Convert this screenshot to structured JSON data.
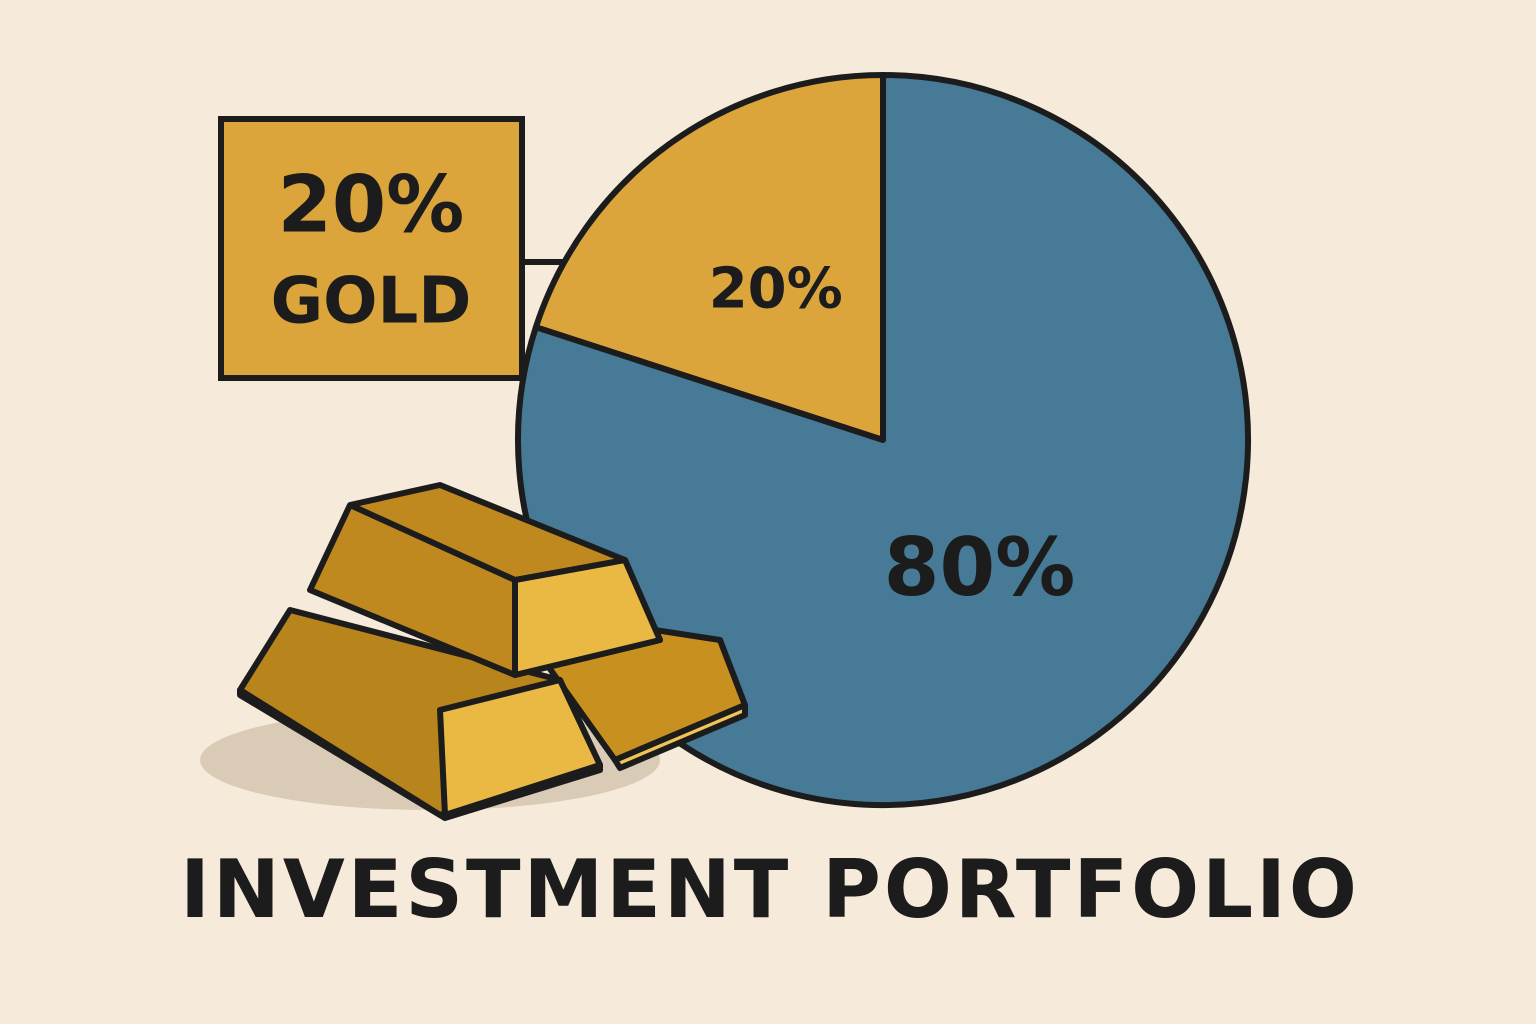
{
  "chart_data": {
    "type": "pie",
    "title": "INVESTMENT PORTFOLIO",
    "categories": [
      "GOLD",
      null
    ],
    "values": [
      20,
      80
    ],
    "value_labels": [
      "20%",
      "80%"
    ],
    "colors": [
      "#dba53c",
      "#467a96"
    ]
  }
}
